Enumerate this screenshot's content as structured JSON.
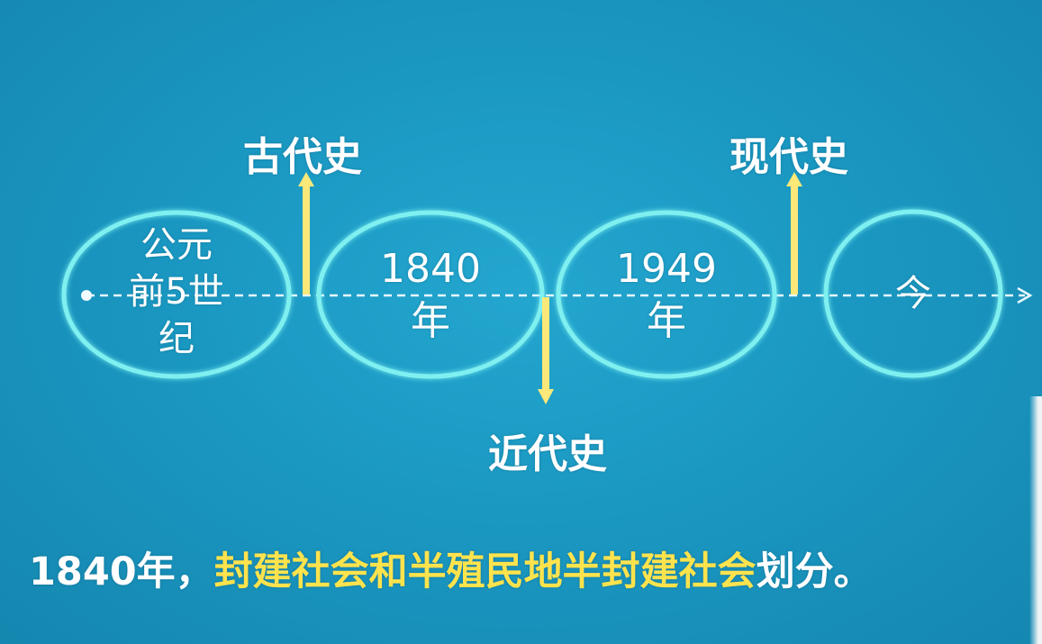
{
  "timeline": {
    "nodes": [
      {
        "label": "公元\n前5世\n纪"
      },
      {
        "label": "1840\n年"
      },
      {
        "label": "1949\n年"
      },
      {
        "label": "今"
      }
    ],
    "periods": {
      "ancient": "古代史",
      "modern": "近代史",
      "contemporary": "现代史"
    }
  },
  "caption": {
    "prefix": "1840年，",
    "highlight": "封建社会和半殖民地半封建社会",
    "suffix": "划分。"
  },
  "colors": {
    "background": "#1a98c2",
    "ring": "#7ff0f0",
    "arrow": "#fbe878",
    "highlight_text": "#ffe34d"
  }
}
